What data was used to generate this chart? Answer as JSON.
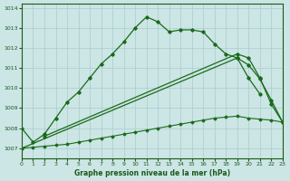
{
  "background_color": "#cce5e5",
  "grid_color": "#aacccc",
  "line_color": "#1a6b1a",
  "title": "Graphe pression niveau de la mer (hPa)",
  "xlim": [
    0,
    23
  ],
  "ylim": [
    1006.5,
    1014.2
  ],
  "yticks": [
    1007,
    1008,
    1009,
    1010,
    1011,
    1012,
    1013,
    1014
  ],
  "xticks": [
    0,
    1,
    2,
    3,
    4,
    5,
    6,
    7,
    8,
    9,
    10,
    11,
    12,
    13,
    14,
    15,
    16,
    17,
    18,
    19,
    20,
    21,
    22,
    23
  ],
  "line1_x": [
    0,
    1,
    2,
    3,
    4,
    5,
    6,
    7,
    8,
    9,
    10,
    11,
    12,
    13,
    14,
    15,
    16,
    17,
    18,
    19,
    20,
    21
  ],
  "line1_y": [
    1008.0,
    1007.3,
    1007.7,
    1008.5,
    1009.3,
    1009.8,
    1010.5,
    1011.2,
    1011.7,
    1012.3,
    1013.0,
    1013.55,
    1013.3,
    1012.8,
    1012.9,
    1012.9,
    1012.8,
    1012.2,
    1011.7,
    1011.5,
    1010.5,
    1009.7
  ],
  "line2_x": [
    0,
    1,
    2,
    3,
    4,
    5,
    6,
    7,
    8,
    9,
    10,
    11,
    12,
    13,
    14,
    15,
    16,
    17,
    18,
    19,
    20,
    21,
    22,
    23
  ],
  "line2_y": [
    1007.0,
    1007.05,
    1007.1,
    1007.15,
    1007.2,
    1007.3,
    1007.4,
    1007.5,
    1007.6,
    1007.7,
    1007.8,
    1007.9,
    1008.0,
    1008.1,
    1008.2,
    1008.3,
    1008.4,
    1008.5,
    1008.55,
    1008.6,
    1008.5,
    1008.45,
    1008.4,
    1008.3
  ],
  "line3_x": [
    2,
    3,
    19,
    20,
    21,
    22,
    23
  ],
  "line3_y": [
    1007.6,
    1007.4,
    1011.7,
    1011.5,
    1010.5,
    1009.2,
    1008.3
  ],
  "line4_x": [
    0,
    1,
    2,
    3,
    19,
    20,
    21,
    22,
    23
  ],
  "line4_y": [
    1008.0,
    1007.3,
    1007.6,
    1007.4,
    1011.7,
    1010.5,
    1009.4,
    null,
    null
  ]
}
